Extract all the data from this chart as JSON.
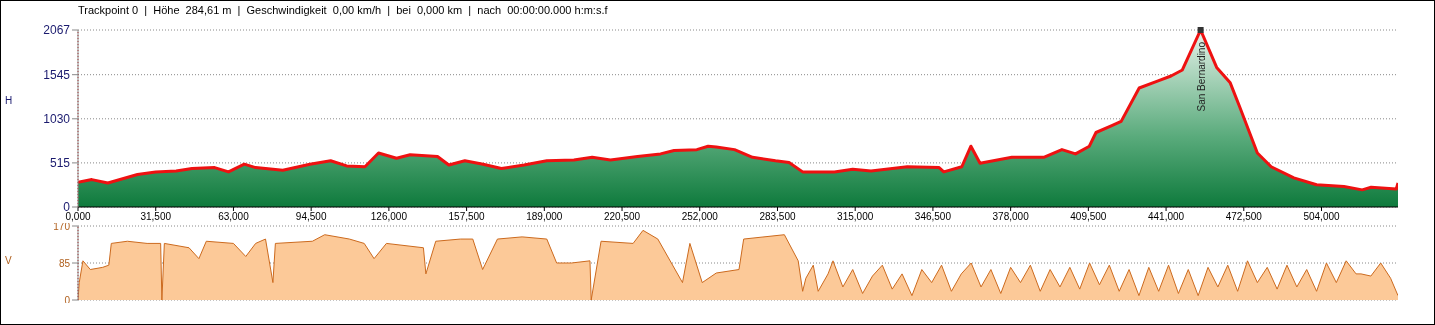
{
  "chart_data": [
    {
      "type": "area",
      "title": "Trackpoint 0  |  Höhe  284,61 m  |  Geschwindigkeit  0,00 km/h  |  bei  0,000 km  |  nach  00:00:00.000 h:m:s.f",
      "ylabel": "H",
      "x": [
        0,
        5.6,
        12.1,
        24.1,
        31.5,
        39.8,
        46.2,
        55.4,
        61,
        67.4,
        72,
        83,
        94,
        102.4,
        108.9,
        116.3,
        121.8,
        129.1,
        134.6,
        145.7,
        150.3,
        156.8,
        164.2,
        171.6,
        180.8,
        190,
        201,
        208.4,
        215.8,
        226.8,
        236.1,
        241.6,
        250.8,
        255.4,
        258.7,
        266.1,
        273.4,
        282.7,
        288.2,
        293.7,
        306.6,
        314,
        321.4,
        336.1,
        349,
        350.9,
        358.2,
        361.9,
        365.6,
        378.5,
        391.4,
        398.8,
        404.3,
        409.9,
        412.6,
        419,
        422.8,
        430.1,
        437.5,
        443,
        447.6,
        455,
        461.5,
        467,
        470.7,
        478,
        483.6,
        492.8,
        502,
        513.1,
        520.5,
        524.1,
        534.3,
        535
      ],
      "series": [
        {
          "color": "#ee1111",
          "values": [
            290,
            320,
            280,
            380,
            410,
            420,
            450,
            460,
            410,
            500,
            460,
            430,
            500,
            540,
            480,
            470,
            630,
            570,
            610,
            590,
            490,
            540,
            500,
            450,
            490,
            540,
            550,
            580,
            550,
            590,
            620,
            660,
            670,
            710,
            700,
            670,
            580,
            540,
            520,
            410,
            410,
            440,
            420,
            470,
            460,
            410,
            470,
            710,
            510,
            580,
            580,
            670,
            620,
            710,
            870,
            950,
            1000,
            1390,
            1470,
            1530,
            1600,
            2067,
            1630,
            1450,
            1180,
            630,
            470,
            340,
            260,
            240,
            200,
            230,
            210,
            280
          ]
        }
      ],
      "xlim": [
        0,
        535
      ],
      "xticks": [
        {
          "value": 0,
          "label": "0,000"
        },
        {
          "value": 31.5,
          "label": "31,500"
        },
        {
          "value": 63,
          "label": "63,000"
        },
        {
          "value": 94.5,
          "label": "94,500"
        },
        {
          "value": 126,
          "label": "126,000"
        },
        {
          "value": 157.5,
          "label": "157,500"
        },
        {
          "value": 189,
          "label": "189,000"
        },
        {
          "value": 220.5,
          "label": "220,500"
        },
        {
          "value": 252,
          "label": "252,000"
        },
        {
          "value": 283.5,
          "label": "283,500"
        },
        {
          "value": 315,
          "label": "315,000"
        },
        {
          "value": 346.5,
          "label": "346,500"
        },
        {
          "value": 378,
          "label": "378,000"
        },
        {
          "value": 409.5,
          "label": "409,500"
        },
        {
          "value": 441,
          "label": "441,000"
        },
        {
          "value": 472.5,
          "label": "472,500"
        },
        {
          "value": 504,
          "label": "504,000"
        }
      ],
      "ylim": [
        0,
        2067
      ],
      "yticks": [
        0,
        515,
        1030,
        1545,
        2067
      ],
      "grid": "y",
      "ref_lines": [
        {
          "axis": "x",
          "value": 0,
          "color": "#cc0000",
          "line_style": "dotted"
        }
      ],
      "annotations": [
        {
          "text": "San Bernardino",
          "x": 455,
          "y": 2067
        }
      ]
    },
    {
      "type": "area",
      "ylabel": "V",
      "x": [
        0,
        0.5,
        2,
        5,
        10,
        12.5,
        13.5,
        20,
        28,
        33.5,
        34,
        35,
        45,
        49,
        52,
        63,
        68,
        72,
        76,
        79,
        80,
        95,
        100,
        110,
        116,
        120,
        125,
        140,
        141,
        145,
        155,
        160,
        164,
        170,
        180,
        190,
        194,
        200,
        207.5,
        208,
        212,
        225,
        229,
        235,
        245,
        248,
        253,
        258.7,
        267.9,
        269.8,
        286.3,
        291.9,
        293.7,
        295,
        298,
        300,
        304,
        306,
        310,
        314,
        318,
        322,
        326,
        330,
        334,
        338,
        342,
        346,
        350,
        354,
        358,
        362,
        366,
        370,
        374,
        378,
        382,
        386,
        390,
        394,
        398,
        402,
        406,
        410,
        414,
        418,
        422,
        426,
        430,
        434,
        438,
        442,
        446,
        450,
        454,
        458,
        462,
        466,
        470,
        474,
        478,
        482,
        486,
        490,
        494,
        498,
        502,
        506,
        510,
        514,
        518,
        520,
        524,
        528,
        532,
        535
      ],
      "series": [
        {
          "color": "#cc6a1e",
          "values": [
            0,
            40,
            90,
            70,
            75,
            80,
            130,
            135,
            130,
            130,
            0,
            130,
            120,
            95,
            135,
            130,
            100,
            130,
            140,
            40,
            130,
            135,
            150,
            140,
            130,
            95,
            130,
            120,
            60,
            135,
            140,
            140,
            70,
            140,
            145,
            140,
            85,
            85,
            90,
            0,
            135,
            130,
            160,
            140,
            40,
            130,
            40,
            62,
            70,
            140,
            150,
            90,
            20,
            50,
            80,
            20,
            60,
            90,
            30,
            70,
            15,
            55,
            80,
            25,
            60,
            10,
            70,
            40,
            80,
            20,
            60,
            85,
            30,
            70,
            15,
            75,
            40,
            80,
            20,
            70,
            30,
            75,
            25,
            85,
            35,
            80,
            20,
            70,
            10,
            75,
            20,
            80,
            15,
            70,
            10,
            75,
            30,
            80,
            20,
            90,
            40,
            75,
            25,
            80,
            30,
            70,
            20,
            85,
            40,
            90,
            60,
            60,
            55,
            85,
            50,
            10
          ]
        }
      ],
      "xlim": [
        0,
        535
      ],
      "ylim": [
        0,
        170
      ],
      "yticks": [
        0,
        85,
        170
      ],
      "grid": "y",
      "tick_labels": "y",
      "ref_lines": [
        {
          "axis": "x",
          "value": 0,
          "color": "#cc0000",
          "line_style": "dotted"
        }
      ]
    }
  ]
}
